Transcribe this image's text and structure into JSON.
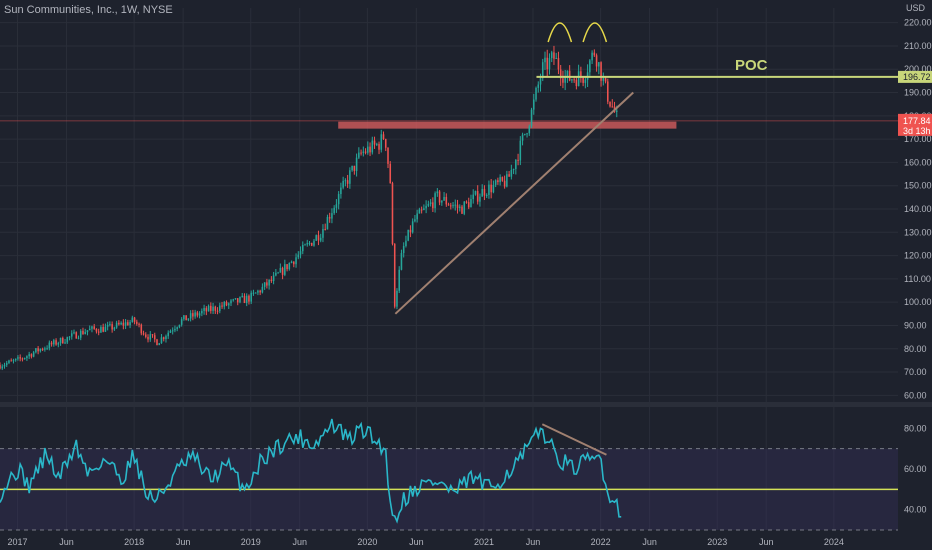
{
  "header": {
    "title": "Sun Communities, Inc., 1W, NYSE",
    "currency": "USD"
  },
  "annotations": {
    "poc_label": "POC",
    "poc_value": "196.72",
    "price_tag": "177.84",
    "countdown_tag": "3d 13h"
  },
  "colors": {
    "background": "#1e222d",
    "up_candle": "#26a69a",
    "down_candle": "#ef5350",
    "poc_line": "#c8d67a",
    "rsi_line": "#2ab7c9",
    "rsi_mid": "#d4e157",
    "support_zone": "#e06060",
    "trendline": "#a08070",
    "axis_text": "#b2b5be"
  },
  "chart_data": [
    {
      "type": "candlestick",
      "title": "Sun Communities, Inc., 1W, NYSE",
      "ylabel": "USD",
      "ylim": [
        58,
        222
      ],
      "y_ticks": [
        60,
        70,
        80,
        90,
        100,
        110,
        120,
        130,
        140,
        150,
        160,
        170,
        180,
        190,
        200,
        210,
        220
      ],
      "y_tick_labels": [
        "60.00",
        "70.00",
        "80.00",
        "90.00",
        "100.00",
        "110.00",
        "120.00",
        "130.00",
        "140.00",
        "150.00",
        "160.00",
        "170.00",
        "180.00",
        "190.00",
        "200.00",
        "210.00",
        "220.00"
      ],
      "x_tick_labels": [
        "2017",
        "Jun",
        "2018",
        "Jun",
        "2019",
        "Jun",
        "2020",
        "Jun",
        "2021",
        "Jun",
        "2022",
        "Jun",
        "2023",
        "Jun",
        "2024"
      ],
      "x_tick_dates": [
        2017.0,
        2017.42,
        2018.0,
        2018.42,
        2019.0,
        2019.42,
        2020.0,
        2020.42,
        2021.0,
        2021.42,
        2022.0,
        2022.42,
        2023.0,
        2023.42,
        2024.0
      ],
      "x_range": [
        2016.85,
        2024.55
      ],
      "close_path": [
        {
          "t": 2016.85,
          "v": 73
        },
        {
          "t": 2017.0,
          "v": 75
        },
        {
          "t": 2017.2,
          "v": 80
        },
        {
          "t": 2017.4,
          "v": 84
        },
        {
          "t": 2017.6,
          "v": 88
        },
        {
          "t": 2017.8,
          "v": 89
        },
        {
          "t": 2018.0,
          "v": 92
        },
        {
          "t": 2018.1,
          "v": 86
        },
        {
          "t": 2018.2,
          "v": 83
        },
        {
          "t": 2018.4,
          "v": 92
        },
        {
          "t": 2018.6,
          "v": 96
        },
        {
          "t": 2018.8,
          "v": 99
        },
        {
          "t": 2019.0,
          "v": 102
        },
        {
          "t": 2019.2,
          "v": 110
        },
        {
          "t": 2019.4,
          "v": 120
        },
        {
          "t": 2019.6,
          "v": 130
        },
        {
          "t": 2019.8,
          "v": 150
        },
        {
          "t": 2019.95,
          "v": 164
        },
        {
          "t": 2020.1,
          "v": 168
        },
        {
          "t": 2020.15,
          "v": 172
        },
        {
          "t": 2020.2,
          "v": 150
        },
        {
          "t": 2020.23,
          "v": 98
        },
        {
          "t": 2020.3,
          "v": 122
        },
        {
          "t": 2020.4,
          "v": 135
        },
        {
          "t": 2020.6,
          "v": 145
        },
        {
          "t": 2020.8,
          "v": 140
        },
        {
          "t": 2021.0,
          "v": 148
        },
        {
          "t": 2021.2,
          "v": 152
        },
        {
          "t": 2021.3,
          "v": 165
        },
        {
          "t": 2021.4,
          "v": 180
        },
        {
          "t": 2021.5,
          "v": 200
        },
        {
          "t": 2021.6,
          "v": 205
        },
        {
          "t": 2021.7,
          "v": 196
        },
        {
          "t": 2021.85,
          "v": 197
        },
        {
          "t": 2021.95,
          "v": 208
        },
        {
          "t": 2022.05,
          "v": 190
        },
        {
          "t": 2022.15,
          "v": 177.84
        }
      ],
      "overlays": {
        "poc": {
          "label": "POC",
          "value": 196.72,
          "t_start": 2021.45,
          "t_end": 2024.55
        },
        "support_zone": {
          "low": 174.5,
          "high": 177.5,
          "t_start": 2019.75,
          "t_end": 2022.65
        },
        "trendline": {
          "t1": 2020.24,
          "v1": 95,
          "t2": 2022.28,
          "v2": 190
        },
        "double_top_arcs": [
          {
            "t_start": 2021.55,
            "t_end": 2021.75
          },
          {
            "t_start": 2021.85,
            "t_end": 2022.05
          }
        ]
      },
      "last_price": 177.84,
      "last_tag": "3d 13h",
      "grid": true
    },
    {
      "type": "line",
      "title": "",
      "ylim": [
        30,
        90
      ],
      "y_ticks": [
        40,
        60,
        80
      ],
      "y_tick_labels": [
        "40.00",
        "60.00",
        "80.00"
      ],
      "band": [
        30,
        70
      ],
      "mid_line": 50,
      "rsi_path": [
        {
          "t": 2016.85,
          "v": 48
        },
        {
          "t": 2017.0,
          "v": 60
        },
        {
          "t": 2017.1,
          "v": 52
        },
        {
          "t": 2017.25,
          "v": 68
        },
        {
          "t": 2017.35,
          "v": 55
        },
        {
          "t": 2017.5,
          "v": 72
        },
        {
          "t": 2017.6,
          "v": 58
        },
        {
          "t": 2017.75,
          "v": 65
        },
        {
          "t": 2017.9,
          "v": 55
        },
        {
          "t": 2018.0,
          "v": 68
        },
        {
          "t": 2018.1,
          "v": 48
        },
        {
          "t": 2018.2,
          "v": 45
        },
        {
          "t": 2018.35,
          "v": 58
        },
        {
          "t": 2018.5,
          "v": 66
        },
        {
          "t": 2018.65,
          "v": 55
        },
        {
          "t": 2018.8,
          "v": 62
        },
        {
          "t": 2018.95,
          "v": 50
        },
        {
          "t": 2019.1,
          "v": 65
        },
        {
          "t": 2019.25,
          "v": 72
        },
        {
          "t": 2019.4,
          "v": 76
        },
        {
          "t": 2019.55,
          "v": 72
        },
        {
          "t": 2019.7,
          "v": 82
        },
        {
          "t": 2019.85,
          "v": 74
        },
        {
          "t": 2019.95,
          "v": 80
        },
        {
          "t": 2020.05,
          "v": 75
        },
        {
          "t": 2020.15,
          "v": 70
        },
        {
          "t": 2020.2,
          "v": 45
        },
        {
          "t": 2020.23,
          "v": 33
        },
        {
          "t": 2020.3,
          "v": 45
        },
        {
          "t": 2020.45,
          "v": 52
        },
        {
          "t": 2020.6,
          "v": 54
        },
        {
          "t": 2020.75,
          "v": 48
        },
        {
          "t": 2020.9,
          "v": 56
        },
        {
          "t": 2021.05,
          "v": 50
        },
        {
          "t": 2021.2,
          "v": 58
        },
        {
          "t": 2021.3,
          "v": 64
        },
        {
          "t": 2021.4,
          "v": 72
        },
        {
          "t": 2021.5,
          "v": 80
        },
        {
          "t": 2021.6,
          "v": 68
        },
        {
          "t": 2021.75,
          "v": 60
        },
        {
          "t": 2021.9,
          "v": 64
        },
        {
          "t": 2022.0,
          "v": 66
        },
        {
          "t": 2022.05,
          "v": 50
        },
        {
          "t": 2022.12,
          "v": 44
        },
        {
          "t": 2022.18,
          "v": 38
        }
      ],
      "divergence_line": {
        "t1": 2021.5,
        "v1": 82,
        "t2": 2022.05,
        "v2": 67
      },
      "grid": true
    }
  ]
}
